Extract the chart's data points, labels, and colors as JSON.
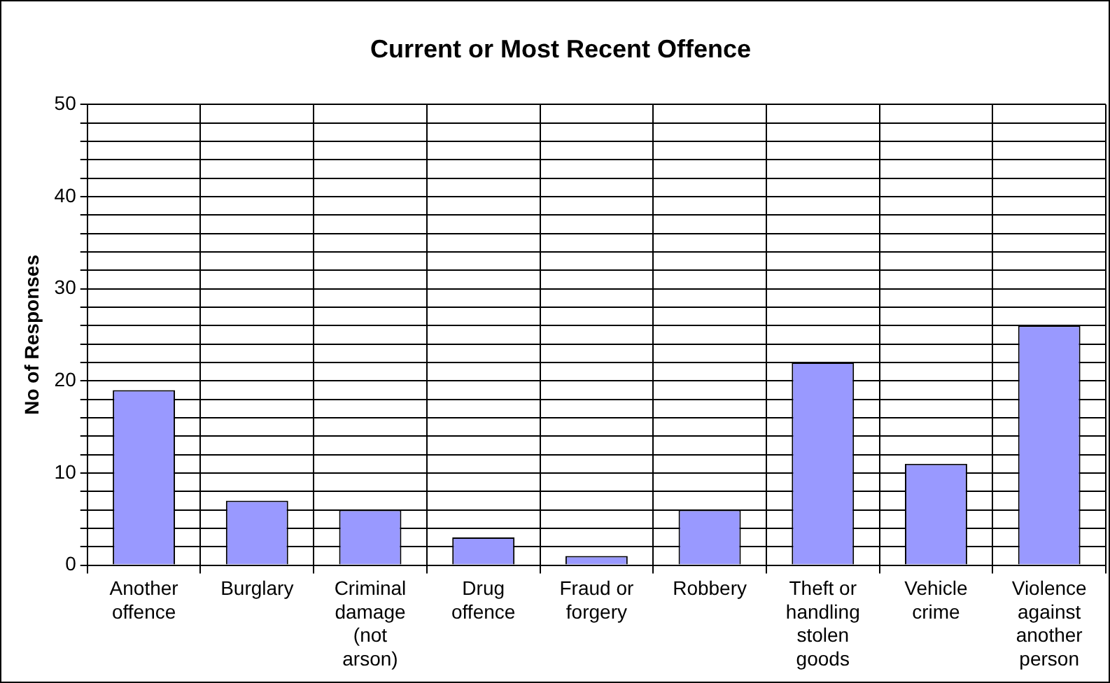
{
  "chart_data": {
    "type": "bar",
    "title": "Current or Most Recent Offence",
    "ylabel": "No of Responses",
    "categories": [
      "Another offence",
      "Burglary",
      "Criminal damage (not arson)",
      "Drug offence",
      "Fraud or forgery",
      "Robbery",
      "Theft or handling stolen goods",
      "Vehicle crime",
      "Violence against another person"
    ],
    "values": [
      19,
      7,
      6,
      3,
      1,
      6,
      22,
      11,
      26
    ],
    "color": "#9999ff",
    "ylim": [
      0,
      50
    ],
    "yticks": [
      0,
      {
        "value": 2,
        "label": null
      },
      {
        "value": 4,
        "label": null
      },
      {
        "value": 6,
        "label": null
      },
      {
        "value": 8,
        "label": null
      },
      10,
      {
        "value": 12,
        "label": null
      },
      {
        "value": 14,
        "label": null
      },
      {
        "value": 16,
        "label": null
      },
      {
        "value": 18,
        "label": null
      },
      20,
      {
        "value": 22,
        "label": null
      },
      {
        "value": 24,
        "label": null
      },
      {
        "value": 26,
        "label": null
      },
      {
        "value": 28,
        "label": null
      },
      30,
      {
        "value": 32,
        "label": null
      },
      {
        "value": 34,
        "label": null
      },
      {
        "value": 36,
        "label": null
      },
      {
        "value": 38,
        "label": null
      },
      40,
      {
        "value": 42,
        "label": null
      },
      {
        "value": 44,
        "label": null
      },
      {
        "value": 46,
        "label": null
      },
      {
        "value": 48,
        "label": null
      },
      50
    ],
    "grid": true
  }
}
